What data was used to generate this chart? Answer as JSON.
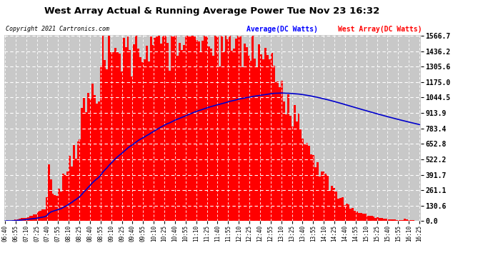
{
  "title": "West Array Actual & Running Average Power Tue Nov 23 16:32",
  "copyright": "Copyright 2021 Cartronics.com",
  "legend_avg": "Average(DC Watts)",
  "legend_west": "West Array(DC Watts)",
  "ylabel_right_ticks": [
    0.0,
    130.6,
    261.1,
    391.7,
    522.2,
    652.8,
    783.4,
    913.9,
    1044.5,
    1175.0,
    1305.6,
    1436.2,
    1566.7
  ],
  "ymax": 1566.7,
  "ymin": 0.0,
  "bar_color": "#FF0000",
  "line_color": "#0000CC",
  "background_color": "#FFFFFF",
  "plot_bg_color": "#C8C8C8",
  "grid_color": "#FFFFFF",
  "title_color": "#000000",
  "copyright_color": "#000000",
  "avg_label_color": "#0000FF",
  "west_label_color": "#FF0000",
  "x_tick_labels": [
    "06:40",
    "06:55",
    "07:10",
    "07:25",
    "07:40",
    "07:55",
    "08:10",
    "08:25",
    "08:40",
    "08:55",
    "09:10",
    "09:25",
    "09:40",
    "09:55",
    "10:10",
    "10:25",
    "10:40",
    "10:55",
    "11:10",
    "11:25",
    "11:40",
    "11:55",
    "12:10",
    "12:25",
    "12:40",
    "12:55",
    "13:10",
    "13:25",
    "13:40",
    "13:55",
    "14:10",
    "14:25",
    "14:40",
    "14:55",
    "15:10",
    "15:25",
    "15:40",
    "15:55",
    "16:10",
    "16:25"
  ],
  "num_bars": 200
}
